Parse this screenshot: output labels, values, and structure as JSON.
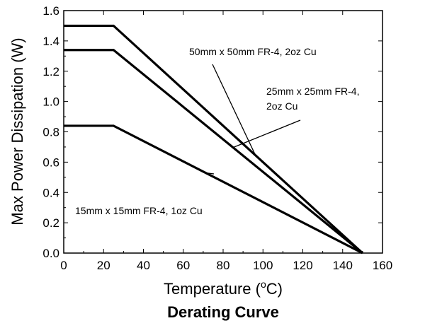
{
  "chart_data": {
    "type": "line",
    "title": "Derating Curve",
    "xlabel": "Temperature (°C)",
    "xlabel_parts": {
      "prefix": "Temperature (",
      "sup": "o",
      "suffix": "C)"
    },
    "ylabel": "Max Power Dissipation (W)",
    "xlim": [
      0,
      160
    ],
    "ylim": [
      0,
      1.6
    ],
    "xticks": [
      "0",
      "20",
      "40",
      "60",
      "80",
      "100",
      "120",
      "140",
      "160"
    ],
    "yticks": [
      "0.0",
      "0.2",
      "0.4",
      "0.6",
      "0.8",
      "1.0",
      "1.2",
      "1.4",
      "1.6"
    ],
    "grid": false,
    "series": [
      {
        "name": "50mm x 50mm FR-4, 2oz Cu",
        "x": [
          0,
          25,
          150
        ],
        "y": [
          1.5,
          1.5,
          0.0
        ]
      },
      {
        "name": "25mm x 25mm FR-4, 2oz Cu",
        "x": [
          0,
          25,
          150
        ],
        "y": [
          1.34,
          1.34,
          0.0
        ]
      },
      {
        "name": "15mm x 15mm FR-4, 1oz Cu",
        "x": [
          0,
          25,
          150
        ],
        "y": [
          0.84,
          0.84,
          0.0
        ]
      }
    ],
    "annotations": [
      {
        "series": 0,
        "lines": [
          "50mm x 50mm FR-4, 2oz Cu"
        ]
      },
      {
        "series": 1,
        "lines": [
          "25mm x 25mm FR-4,",
          "2oz Cu"
        ]
      },
      {
        "series": 2,
        "lines": [
          "15mm x 15mm FR-4, 1oz Cu"
        ]
      }
    ]
  }
}
